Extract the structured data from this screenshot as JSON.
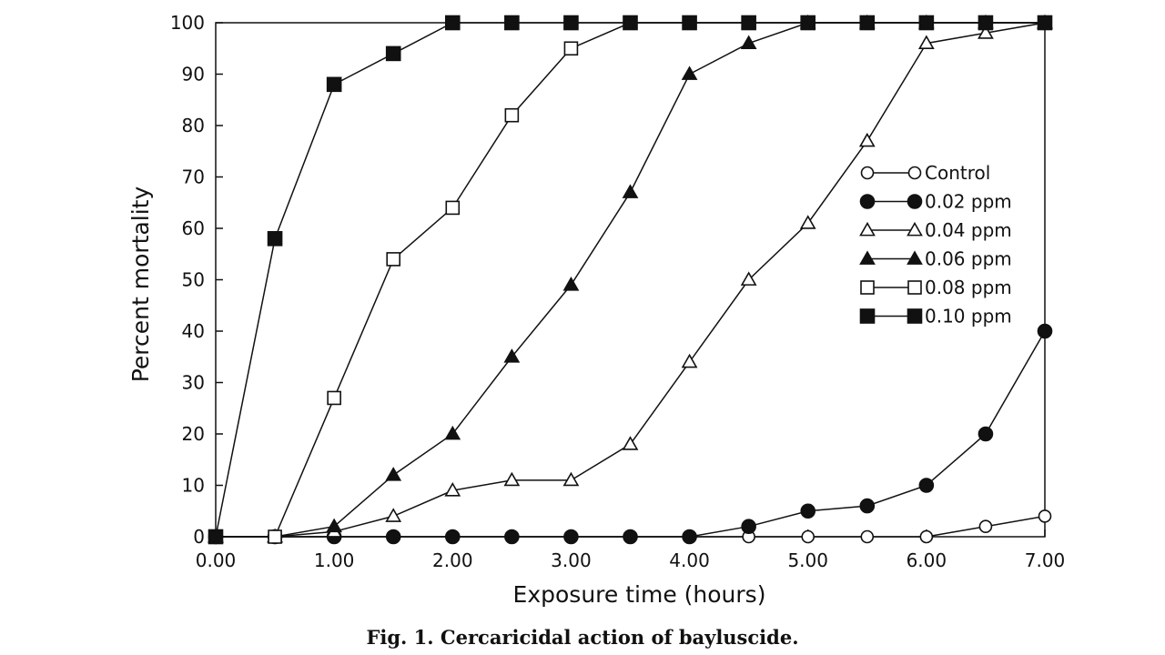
{
  "caption": "Fig. 1. Cercaricidal action of bayluscide.",
  "chart_data": {
    "type": "line",
    "title": "",
    "xlabel": "Exposure time (hours)",
    "ylabel": "Percent mortality",
    "xlim": [
      0,
      7
    ],
    "ylim": [
      0,
      100
    ],
    "xticks": [
      0,
      1,
      2,
      3,
      4,
      5,
      6,
      7
    ],
    "xtick_labels": [
      "0.00",
      "1.00",
      "2.00",
      "3.00",
      "4.00",
      "5.00",
      "6.00",
      "7.00"
    ],
    "yticks": [
      0,
      10,
      20,
      30,
      40,
      50,
      60,
      70,
      80,
      90,
      100
    ],
    "ytick_labels": [
      "0",
      "10",
      "20",
      "30",
      "40",
      "50",
      "60",
      "70",
      "80",
      "90",
      "100"
    ],
    "grid": false,
    "legend_position": "right",
    "x": [
      0,
      0.5,
      1,
      1.5,
      2,
      2.5,
      3,
      3.5,
      4,
      4.5,
      5,
      5.5,
      6,
      6.5,
      7
    ],
    "series": [
      {
        "name": "Control",
        "marker": "circle-open",
        "values": [
          0,
          0,
          0,
          0,
          0,
          0,
          0,
          0,
          0,
          0,
          0,
          0,
          0,
          2,
          4
        ]
      },
      {
        "name": "0.02 ppm",
        "marker": "circle-filled",
        "values": [
          0,
          0,
          0,
          0,
          0,
          0,
          0,
          0,
          0,
          2,
          5,
          6,
          10,
          20,
          40
        ]
      },
      {
        "name": "0.04 ppm",
        "marker": "triangle-open",
        "values": [
          0,
          0,
          1,
          4,
          9,
          11,
          11,
          18,
          34,
          50,
          61,
          77,
          96,
          98,
          100
        ]
      },
      {
        "name": "0.06 ppm",
        "marker": "triangle-filled",
        "values": [
          0,
          0,
          2,
          12,
          20,
          35,
          49,
          67,
          90,
          96,
          100,
          100,
          100,
          100,
          100
        ]
      },
      {
        "name": "0.08 ppm",
        "marker": "square-open",
        "values": [
          0,
          0,
          27,
          54,
          64,
          82,
          95,
          100,
          100,
          100,
          100,
          100,
          100,
          100,
          100
        ]
      },
      {
        "name": "0.10 ppm",
        "marker": "square-filled",
        "values": [
          0,
          58,
          88,
          94,
          100,
          100,
          100,
          100,
          100,
          100,
          100,
          100,
          100,
          100,
          100
        ]
      }
    ]
  }
}
